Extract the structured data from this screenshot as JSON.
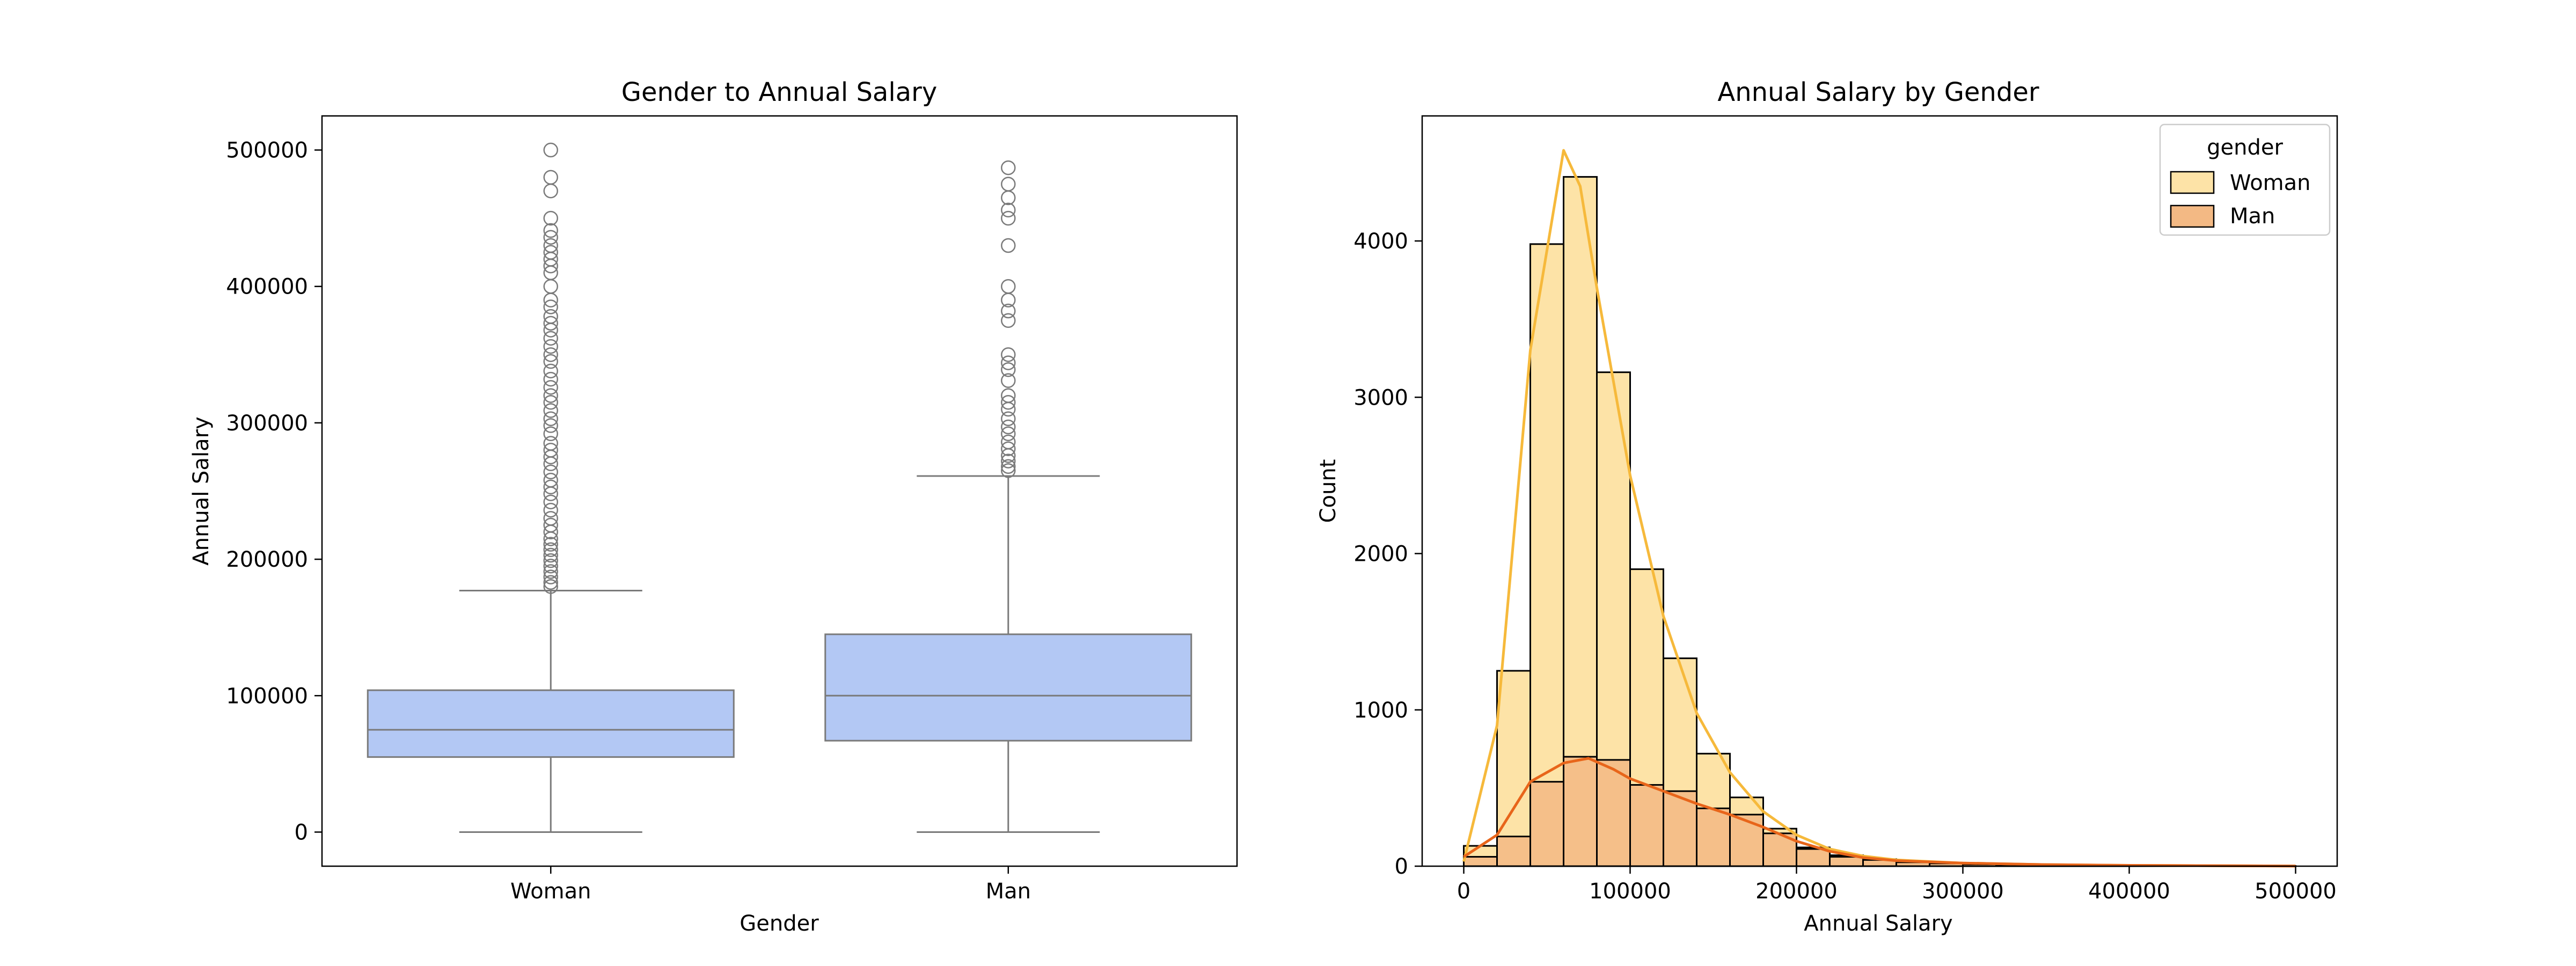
{
  "chart_data": [
    {
      "type": "box",
      "title": "Gender to Annual Salary",
      "xlabel": "Gender",
      "ylabel": "Annual Salary",
      "categories": [
        "Woman",
        "Man"
      ],
      "ylim": [
        -25000,
        525000
      ],
      "yticks": [
        0,
        100000,
        200000,
        300000,
        400000,
        500000
      ],
      "ytick_labels": [
        "0",
        "100000",
        "200000",
        "300000",
        "400000",
        "500000"
      ],
      "box_color": "#b3c8f4",
      "edge_color": "#7a7a7a",
      "boxes": [
        {
          "name": "Woman",
          "whisker_low": 0,
          "q1": 55000,
          "median": 75000,
          "q3": 104000,
          "whisker_high": 177000,
          "outliers": [
            180000,
            183000,
            187000,
            191000,
            195000,
            199000,
            203000,
            207000,
            211000,
            215000,
            220000,
            225000,
            230000,
            236000,
            242000,
            248000,
            253000,
            258000,
            264000,
            270000,
            275000,
            280000,
            285000,
            292000,
            298000,
            303000,
            309000,
            315000,
            320000,
            326000,
            332000,
            338000,
            345000,
            350000,
            356000,
            362000,
            368000,
            373000,
            378000,
            385000,
            390000,
            400000,
            410000,
            415000,
            420000,
            425000,
            430000,
            436000,
            441000,
            450000,
            470000,
            480000,
            500000
          ]
        },
        {
          "name": "Man",
          "whisker_low": 0,
          "q1": 67000,
          "median": 100000,
          "q3": 145000,
          "whisker_high": 261000,
          "outliers": [
            265000,
            268000,
            272000,
            276000,
            281000,
            286000,
            292000,
            297000,
            303000,
            310000,
            315000,
            320000,
            331000,
            339000,
            344000,
            350000,
            375000,
            382000,
            390000,
            400000,
            430000,
            450000,
            456000,
            465000,
            475000,
            487000
          ]
        }
      ]
    },
    {
      "type": "histogram",
      "title": "Annual Salary by Gender",
      "xlabel": "Annual Salary",
      "ylabel": "Count",
      "xlim": [
        -25000,
        525000
      ],
      "ylim": [
        0,
        4800
      ],
      "xticks": [
        0,
        100000,
        200000,
        300000,
        400000,
        500000
      ],
      "xtick_labels": [
        "0",
        "100000",
        "200000",
        "300000",
        "400000",
        "500000"
      ],
      "yticks": [
        0,
        1000,
        2000,
        3000,
        4000
      ],
      "ytick_labels": [
        "0",
        "1000",
        "2000",
        "3000",
        "4000"
      ],
      "bin_edges": [
        0,
        20000,
        40000,
        60000,
        80000,
        100000,
        120000,
        140000,
        160000,
        180000,
        200000,
        220000,
        240000,
        260000,
        280000,
        300000,
        320000,
        340000,
        360000,
        380000,
        400000,
        420000,
        440000,
        460000,
        480000,
        500000
      ],
      "legend": {
        "title": "gender",
        "position": "upper right"
      },
      "series": [
        {
          "name": "Woman",
          "color": "#fde3a7",
          "line_color": "#f6b93b",
          "counts": [
            130,
            1250,
            3980,
            4410,
            3160,
            1900,
            1330,
            720,
            440,
            240,
            120,
            70,
            45,
            30,
            22,
            12,
            8,
            6,
            5,
            4,
            3,
            2,
            2,
            1,
            1
          ],
          "kde": [
            [
              0,
              30
            ],
            [
              20000,
              900
            ],
            [
              40000,
              3300
            ],
            [
              60000,
              4580
            ],
            [
              70000,
              4350
            ],
            [
              80000,
              3700
            ],
            [
              100000,
              2500
            ],
            [
              120000,
              1600
            ],
            [
              140000,
              980
            ],
            [
              160000,
              600
            ],
            [
              180000,
              350
            ],
            [
              200000,
              200
            ],
            [
              220000,
              110
            ],
            [
              240000,
              65
            ],
            [
              260000,
              40
            ],
            [
              300000,
              20
            ],
            [
              350000,
              10
            ],
            [
              400000,
              5
            ],
            [
              450000,
              3
            ],
            [
              500000,
              1
            ]
          ]
        },
        {
          "name": "Man",
          "color": "#f3b984",
          "line_color": "#e8651a",
          "counts": [
            60,
            190,
            540,
            700,
            680,
            520,
            480,
            370,
            330,
            210,
            110,
            60,
            40,
            25,
            18,
            12,
            8,
            5,
            4,
            3,
            2,
            2,
            1,
            1,
            1
          ],
          "kde": [
            [
              0,
              60
            ],
            [
              20000,
              200
            ],
            [
              40000,
              540
            ],
            [
              60000,
              660
            ],
            [
              75000,
              690
            ],
            [
              90000,
              620
            ],
            [
              100000,
              560
            ],
            [
              120000,
              480
            ],
            [
              140000,
              400
            ],
            [
              160000,
              330
            ],
            [
              180000,
              250
            ],
            [
              200000,
              160
            ],
            [
              220000,
              95
            ],
            [
              240000,
              55
            ],
            [
              260000,
              35
            ],
            [
              300000,
              20
            ],
            [
              350000,
              10
            ],
            [
              400000,
              5
            ],
            [
              450000,
              3
            ],
            [
              500000,
              1
            ]
          ]
        }
      ]
    }
  ]
}
